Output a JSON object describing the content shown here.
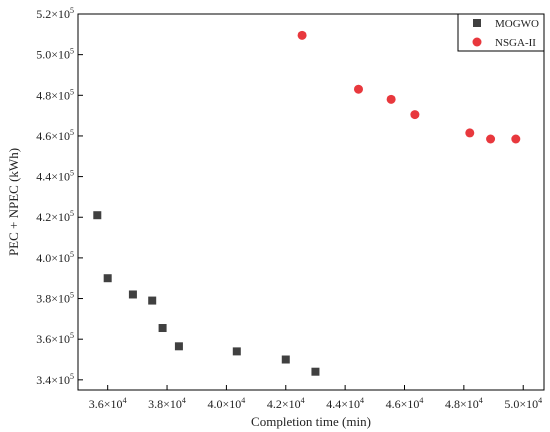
{
  "chart_data": {
    "type": "scatter",
    "title": "",
    "xlabel": "Completion time (min)",
    "ylabel": "PEC + NPEC (kWh)",
    "xlim": [
      35000,
      50700
    ],
    "ylim": [
      335000,
      520000
    ],
    "x_ticks": [
      {
        "value": 36000,
        "base": "3.6×10",
        "exp": "4"
      },
      {
        "value": 38000,
        "base": "3.8×10",
        "exp": "4"
      },
      {
        "value": 40000,
        "base": "4.0×10",
        "exp": "4"
      },
      {
        "value": 42000,
        "base": "4.2×10",
        "exp": "4"
      },
      {
        "value": 44000,
        "base": "4.4×10",
        "exp": "4"
      },
      {
        "value": 46000,
        "base": "4.6×10",
        "exp": "4"
      },
      {
        "value": 48000,
        "base": "4.8×10",
        "exp": "4"
      },
      {
        "value": 50000,
        "base": "5.0×10",
        "exp": "4"
      }
    ],
    "y_ticks": [
      {
        "value": 340000,
        "base": "3.4×10",
        "exp": "5"
      },
      {
        "value": 360000,
        "base": "3.6×10",
        "exp": "5"
      },
      {
        "value": 380000,
        "base": "3.8×10",
        "exp": "5"
      },
      {
        "value": 400000,
        "base": "4.0×10",
        "exp": "5"
      },
      {
        "value": 420000,
        "base": "4.2×10",
        "exp": "5"
      },
      {
        "value": 440000,
        "base": "4.4×10",
        "exp": "5"
      },
      {
        "value": 460000,
        "base": "4.6×10",
        "exp": "5"
      },
      {
        "value": 480000,
        "base": "4.8×10",
        "exp": "5"
      },
      {
        "value": 500000,
        "base": "5.0×10",
        "exp": "5"
      },
      {
        "value": 520000,
        "base": "5.2×10",
        "exp": "5"
      }
    ],
    "grid": false,
    "legend_position": "top-right",
    "series": [
      {
        "name": "MOGWO",
        "marker": "square",
        "color": "#404040",
        "points": [
          {
            "x": 35650,
            "y": 421000
          },
          {
            "x": 36000,
            "y": 390000
          },
          {
            "x": 36850,
            "y": 382000
          },
          {
            "x": 37500,
            "y": 379000
          },
          {
            "x": 37850,
            "y": 365500
          },
          {
            "x": 38400,
            "y": 356500
          },
          {
            "x": 40350,
            "y": 354000
          },
          {
            "x": 42000,
            "y": 350000
          },
          {
            "x": 43000,
            "y": 344000
          }
        ]
      },
      {
        "name": "NSGA-II",
        "marker": "circle",
        "color": "#e8383d",
        "points": [
          {
            "x": 42550,
            "y": 509500
          },
          {
            "x": 44450,
            "y": 483000
          },
          {
            "x": 45550,
            "y": 478000
          },
          {
            "x": 46350,
            "y": 470500
          },
          {
            "x": 48200,
            "y": 461500
          },
          {
            "x": 48900,
            "y": 458500
          },
          {
            "x": 49750,
            "y": 458500
          }
        ]
      }
    ]
  }
}
